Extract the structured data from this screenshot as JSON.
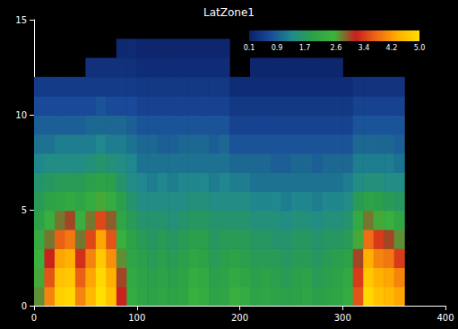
{
  "chart_data": {
    "type": "heatmap",
    "title": "LatZone1",
    "xlim": [
      0,
      400
    ],
    "xticks": [
      0,
      100,
      200,
      300,
      400
    ],
    "ylim": [
      0,
      15
    ],
    "yticks": [
      0,
      5,
      10,
      15
    ],
    "grid": false,
    "heatmap": {
      "x": [
        5,
        15,
        25,
        35,
        45,
        55,
        65,
        75,
        85,
        95,
        105,
        115,
        125,
        135,
        145,
        155,
        165,
        175,
        185,
        195,
        205,
        215,
        225,
        235,
        245,
        255,
        265,
        275,
        285,
        295,
        305,
        315,
        325,
        335,
        345,
        355
      ],
      "y": [
        0.5,
        1.5,
        2.5,
        3.5,
        4.5,
        5.5,
        6.5,
        7.5,
        8.5,
        9.5,
        10.5,
        11.5,
        12.5,
        13.5,
        14.5
      ],
      "values": [
        [
          2.7,
          2.6,
          2.5,
          2.3,
          2.0,
          1.8,
          1.6,
          1.3,
          1.1,
          0.9,
          0.7,
          0.5,
          null,
          null,
          null
        ],
        [
          4.0,
          3.6,
          3.2,
          2.8,
          2.4,
          2.0,
          1.7,
          1.4,
          1.1,
          0.9,
          0.7,
          0.5,
          null,
          null,
          null
        ],
        [
          4.8,
          4.6,
          4.3,
          3.7,
          2.8,
          2.1,
          1.8,
          1.4,
          1.2,
          0.9,
          0.7,
          0.5,
          null,
          null,
          null
        ],
        [
          4.9,
          4.7,
          4.4,
          3.9,
          3.0,
          2.2,
          1.8,
          1.4,
          1.2,
          0.9,
          0.7,
          0.5,
          null,
          null,
          null
        ],
        [
          4.0,
          3.7,
          3.3,
          2.8,
          2.4,
          2.1,
          1.8,
          1.4,
          1.2,
          0.9,
          0.7,
          0.5,
          null,
          null,
          null
        ],
        [
          4.5,
          4.3,
          4.0,
          3.5,
          2.8,
          2.3,
          1.9,
          1.5,
          1.2,
          1.0,
          0.7,
          0.5,
          0.35,
          null,
          null
        ],
        [
          5.0,
          4.9,
          4.7,
          4.3,
          3.5,
          2.6,
          2.0,
          1.6,
          1.3,
          1.0,
          0.8,
          0.5,
          0.35,
          null,
          null
        ],
        [
          4.6,
          4.4,
          4.1,
          3.6,
          2.9,
          2.3,
          1.9,
          1.5,
          1.2,
          1.0,
          0.7,
          0.5,
          0.35,
          null,
          null
        ],
        [
          3.2,
          3.0,
          2.7,
          2.4,
          2.1,
          1.9,
          1.6,
          1.4,
          1.2,
          1.0,
          0.7,
          0.5,
          0.35,
          0.25,
          null
        ],
        [
          2.3,
          2.2,
          2.1,
          2.0,
          1.8,
          1.6,
          1.4,
          1.3,
          1.1,
          0.9,
          0.7,
          0.5,
          0.35,
          0.25,
          null
        ],
        [
          2.1,
          2.0,
          1.9,
          1.8,
          1.6,
          1.4,
          1.3,
          1.1,
          1.0,
          0.8,
          0.6,
          0.45,
          0.3,
          0.2,
          null
        ],
        [
          2.0,
          1.9,
          1.8,
          1.7,
          1.6,
          1.4,
          1.2,
          1.1,
          1.0,
          0.8,
          0.6,
          0.45,
          0.3,
          0.2,
          null
        ],
        [
          2.1,
          2.0,
          1.9,
          1.8,
          1.6,
          1.4,
          1.3,
          1.1,
          0.9,
          0.8,
          0.6,
          0.45,
          0.3,
          0.2,
          null
        ],
        [
          2.0,
          1.9,
          1.8,
          1.7,
          1.5,
          1.4,
          1.2,
          1.1,
          0.9,
          0.8,
          0.6,
          0.45,
          0.3,
          0.2,
          null
        ],
        [
          2.1,
          2.0,
          1.9,
          1.8,
          1.6,
          1.4,
          1.3,
          1.1,
          1.0,
          0.8,
          0.6,
          0.45,
          0.3,
          0.2,
          null
        ],
        [
          2.4,
          2.3,
          2.1,
          1.9,
          1.7,
          1.5,
          1.3,
          1.1,
          1.0,
          0.8,
          0.6,
          0.45,
          0.3,
          0.2,
          null
        ],
        [
          2.3,
          2.2,
          2.0,
          1.9,
          1.7,
          1.5,
          1.3,
          1.1,
          1.0,
          0.8,
          0.6,
          0.45,
          0.3,
          0.2,
          null
        ],
        [
          2.0,
          1.9,
          1.8,
          1.7,
          1.6,
          1.4,
          1.2,
          1.1,
          0.9,
          0.8,
          0.6,
          0.45,
          0.3,
          0.2,
          null
        ],
        [
          2.1,
          2.0,
          1.9,
          1.8,
          1.6,
          1.4,
          1.3,
          1.1,
          1.0,
          0.8,
          0.6,
          0.45,
          0.3,
          0.2,
          null
        ],
        [
          2.4,
          2.2,
          2.0,
          1.8,
          1.6,
          1.4,
          1.2,
          1.0,
          0.8,
          0.6,
          0.45,
          0.3,
          null,
          null,
          null
        ],
        [
          2.3,
          2.1,
          1.9,
          1.8,
          1.6,
          1.4,
          1.2,
          1.0,
          0.8,
          0.6,
          0.45,
          0.3,
          null,
          null,
          null
        ],
        [
          2.0,
          1.9,
          1.8,
          1.7,
          1.5,
          1.3,
          1.1,
          1.0,
          0.8,
          0.6,
          0.45,
          0.3,
          0.2,
          null,
          null
        ],
        [
          2.1,
          2.0,
          1.8,
          1.7,
          1.5,
          1.3,
          1.1,
          1.0,
          0.8,
          0.6,
          0.45,
          0.3,
          0.2,
          null,
          null
        ],
        [
          2.0,
          1.9,
          1.8,
          1.6,
          1.5,
          1.3,
          1.1,
          0.9,
          0.8,
          0.6,
          0.45,
          0.3,
          0.2,
          null,
          null
        ],
        [
          1.9,
          1.8,
          1.7,
          1.6,
          1.4,
          1.2,
          1.1,
          0.9,
          0.8,
          0.6,
          0.45,
          0.3,
          0.2,
          null,
          null
        ],
        [
          2.0,
          1.9,
          1.8,
          1.7,
          1.5,
          1.3,
          1.1,
          1.0,
          0.8,
          0.6,
          0.45,
          0.3,
          0.2,
          null,
          null
        ],
        [
          2.1,
          2.0,
          1.8,
          1.7,
          1.5,
          1.3,
          1.1,
          1.0,
          0.8,
          0.6,
          0.45,
          0.3,
          0.2,
          null,
          null
        ],
        [
          1.9,
          1.8,
          1.7,
          1.6,
          1.4,
          1.2,
          1.1,
          0.9,
          0.8,
          0.6,
          0.45,
          0.3,
          0.2,
          null,
          null
        ],
        [
          2.0,
          1.9,
          1.8,
          1.7,
          1.5,
          1.3,
          1.1,
          1.0,
          0.8,
          0.6,
          0.45,
          0.3,
          0.2,
          null,
          null
        ],
        [
          2.1,
          2.0,
          1.9,
          1.7,
          1.5,
          1.3,
          1.1,
          1.0,
          0.8,
          0.6,
          0.45,
          0.3,
          0.2,
          null,
          null
        ],
        [
          2.3,
          2.2,
          2.0,
          1.8,
          1.6,
          1.4,
          1.2,
          1.0,
          0.8,
          0.6,
          0.45,
          0.3,
          null,
          null,
          null
        ],
        [
          3.6,
          3.4,
          3.0,
          2.6,
          2.2,
          1.8,
          1.4,
          1.2,
          1.0,
          0.8,
          0.6,
          0.4,
          null,
          null,
          null
        ],
        [
          4.9,
          4.7,
          4.4,
          3.8,
          2.8,
          2.0,
          1.5,
          1.2,
          1.0,
          0.8,
          0.6,
          0.4,
          null,
          null,
          null
        ],
        [
          4.6,
          4.4,
          4.0,
          3.4,
          2.6,
          1.9,
          1.5,
          1.2,
          1.0,
          0.8,
          0.6,
          0.4,
          null,
          null,
          null
        ],
        [
          4.5,
          4.3,
          3.9,
          3.0,
          2.4,
          1.8,
          1.4,
          1.2,
          1.0,
          0.8,
          0.6,
          0.4,
          null,
          null,
          null
        ],
        [
          4.3,
          4.0,
          3.4,
          2.7,
          2.1,
          1.7,
          1.4,
          1.1,
          0.9,
          0.8,
          0.6,
          0.4,
          null,
          null,
          null
        ]
      ]
    },
    "colorbar": {
      "range": [
        0.1,
        5.0
      ],
      "ticks": [
        0.1,
        0.9,
        1.7,
        2.6,
        3.4,
        4.2,
        {
          "value": 5.0,
          "label": "5.0"
        }
      ]
    }
  }
}
